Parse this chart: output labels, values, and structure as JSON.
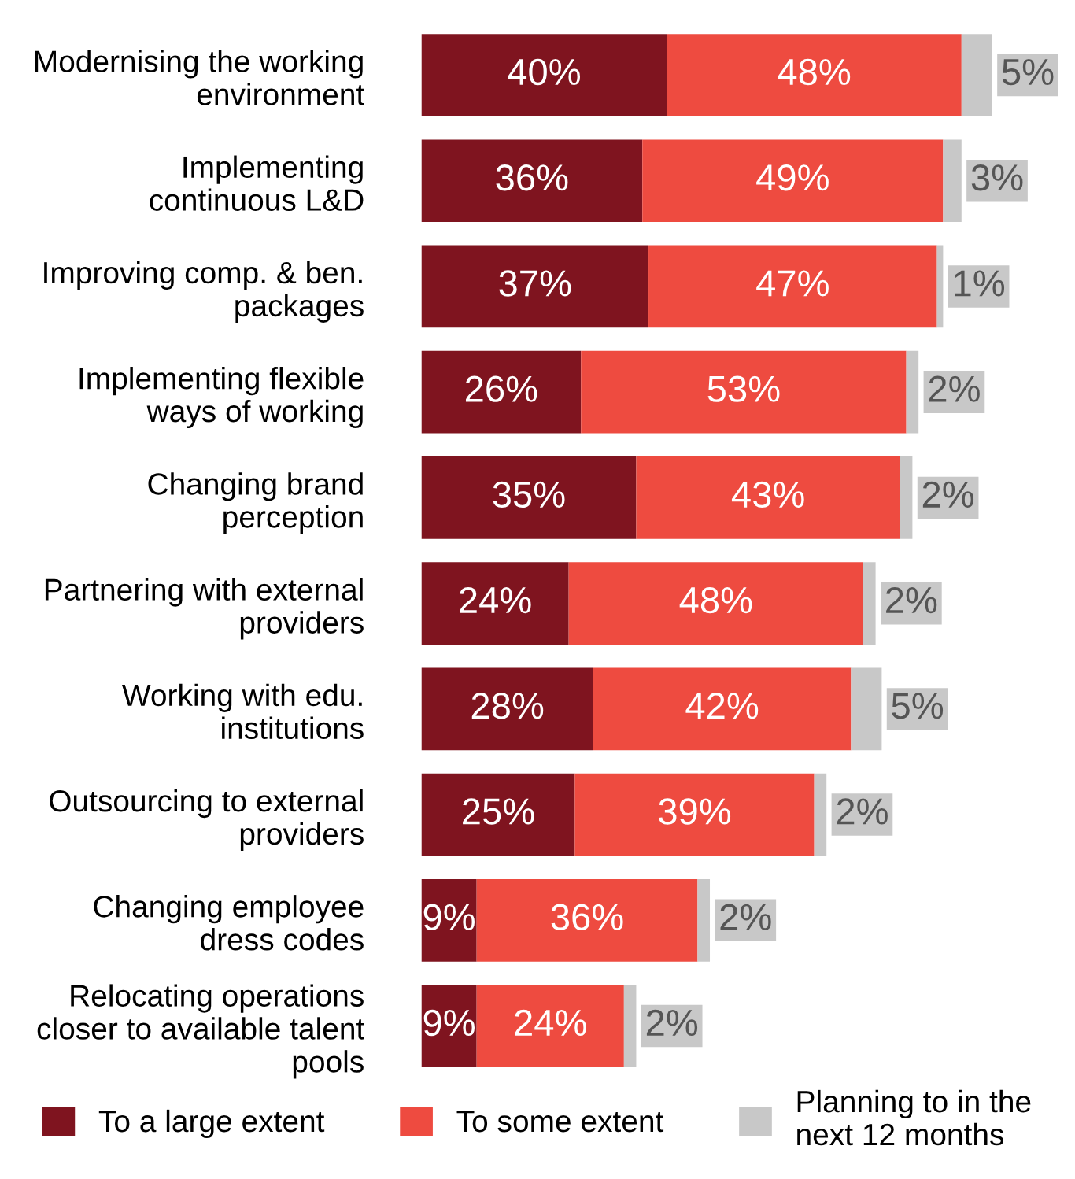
{
  "chart_data": {
    "type": "bar",
    "orientation": "horizontal",
    "stacked": true,
    "tick_labels": "y",
    "legend": "bottom",
    "grid": false,
    "categories": [
      "Modernising the working\nenvironment",
      "Implementing\ncontinuous L&D",
      "Improving comp. & ben.\npackages",
      "Implementing flexible\nways of working",
      "Changing brand\nperception",
      "Partnering with external\nproviders",
      "Working with edu.\ninstitutions",
      "Outsourcing to external\nproviders",
      "Changing employee\ndress codes",
      "Relocating operations\ncloser to available talent\npools"
    ],
    "series": [
      {
        "name": "To a large extent",
        "color": "#7f141f",
        "values": [
          40,
          36,
          37,
          26,
          35,
          24,
          28,
          25,
          9,
          9
        ],
        "value_labels": [
          "40%",
          "36%",
          "37%",
          "26%",
          "35%",
          "24%",
          "28%",
          "25%",
          "9%",
          "9%"
        ]
      },
      {
        "name": "To some extent",
        "color": "#ee4b40",
        "values": [
          48,
          49,
          47,
          53,
          43,
          48,
          42,
          39,
          36,
          24
        ],
        "value_labels": [
          "48%",
          "49%",
          "47%",
          "53%",
          "43%",
          "48%",
          "42%",
          "39%",
          "36%",
          "24%"
        ]
      },
      {
        "name": "Planning to in the\nnext 12 months",
        "color": "#c8c8c8",
        "values": [
          5,
          3,
          1,
          2,
          2,
          2,
          5,
          2,
          2,
          2
        ],
        "value_labels": [
          "5%",
          "3%",
          "1%",
          "2%",
          "2%",
          "2%",
          "5%",
          "2%",
          "2%",
          "2%"
        ]
      }
    ]
  }
}
